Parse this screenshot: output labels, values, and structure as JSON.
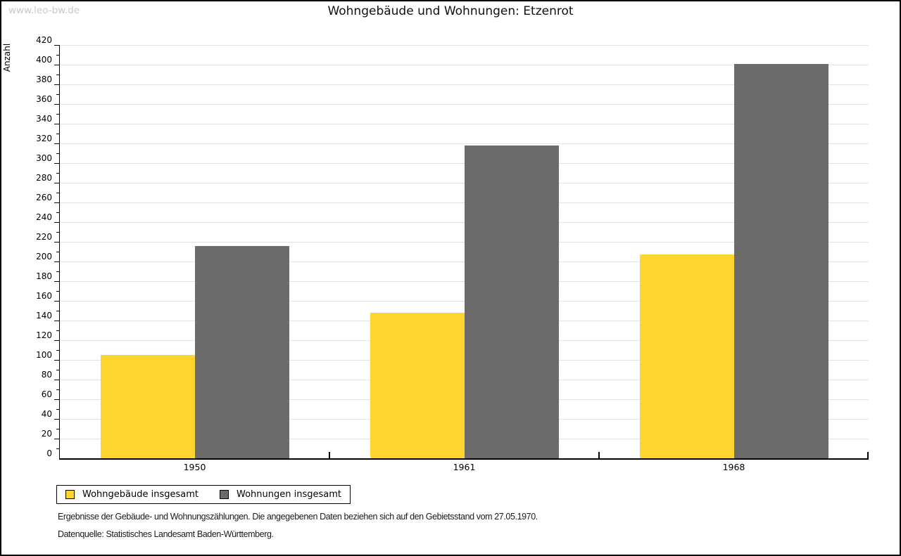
{
  "watermark": "www.leo-bw.de",
  "title": "Wohngebäude und Wohnungen: Etzenrot",
  "footer": {
    "line1": "Ergebnisse der Gebäude- und Wohnungszählungen. Die angegebenen Daten beziehen sich auf den Gebietsstand vom 27.05.1970.",
    "line2": "Datenquelle: Statistisches Landesamt Baden-Württemberg."
  },
  "colors": {
    "series_wohngebaeude": "#FDD52E",
    "series_wohnungen": "#6B6B6B",
    "gridline": "#E2E2E2",
    "axis": "#000000",
    "watermark": "#C9C9C9"
  },
  "chart_data": {
    "type": "bar",
    "title": "Wohngebäude und Wohnungen: Etzenrot",
    "categories": [
      "1950",
      "1961",
      "1968"
    ],
    "series": [
      {
        "name": "Wohngebäude insgesamt",
        "color": "#FDD52E",
        "values": [
          105,
          148,
          207
        ]
      },
      {
        "name": "Wohnungen insgesamt",
        "color": "#6B6B6B",
        "values": [
          216,
          318,
          401
        ]
      }
    ],
    "xlabel": "",
    "ylabel": "Anzahl",
    "ylim": [
      0,
      420
    ],
    "ytick_major_step": 20,
    "ytick_minor_step": 10,
    "grid": true,
    "legend_position": "bottom-left"
  }
}
